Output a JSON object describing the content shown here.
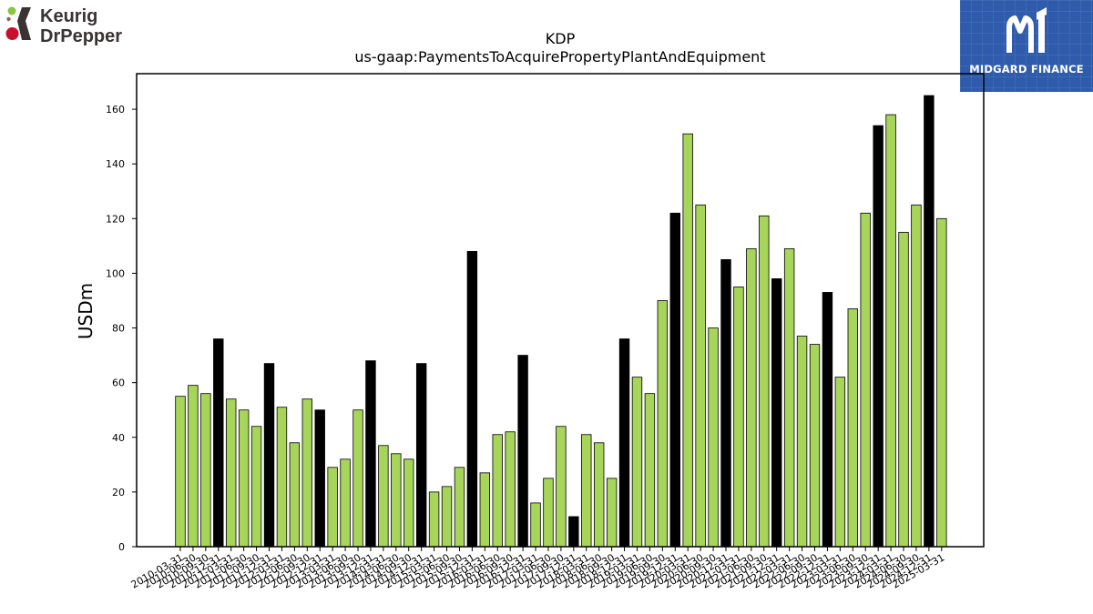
{
  "brand": {
    "logo_line1": "Keurig",
    "logo_line2": "DrPepper",
    "colors": {
      "dark": "#3a3333",
      "green": "#8cc540",
      "red": "#c8102e"
    }
  },
  "partner": {
    "wordmark": "MIDGARD FINANCE",
    "colors": {
      "background": "#2e5bab",
      "text": "#ffffff"
    }
  },
  "chart_data": {
    "type": "bar",
    "title": "KDP",
    "subtitle": "us-gaap:PaymentsToAcquirePropertyPlantAndEquipment",
    "xlabel": "",
    "ylabel": "USDm",
    "ylim": [
      0,
      173
    ],
    "yticks": [
      0,
      20,
      40,
      60,
      80,
      100,
      120,
      140,
      160
    ],
    "grid": false,
    "colors": {
      "quarter": "#a6d55a",
      "annual": "#000000",
      "edge": "#000000"
    },
    "categories": [
      "2010-03-31",
      "2010-06-30",
      "2010-09-30",
      "2010-12-31",
      "2011-03-31",
      "2011-06-30",
      "2011-09-30",
      "2011-12-31",
      "2012-03-31",
      "2012-06-30",
      "2012-09-30",
      "2012-12-31",
      "2013-03-31",
      "2013-06-30",
      "2013-09-30",
      "2013-12-31",
      "2014-03-31",
      "2014-06-30",
      "2014-09-30",
      "2014-12-31",
      "2015-03-31",
      "2015-06-30",
      "2015-09-30",
      "2015-12-31",
      "2016-03-31",
      "2016-06-30",
      "2016-09-30",
      "2016-12-31",
      "2017-03-31",
      "2017-06-30",
      "2017-09-30",
      "2017-12-31",
      "2018-03-31",
      "2018-06-30",
      "2018-09-30",
      "2018-12-31",
      "2019-03-31",
      "2019-06-30",
      "2019-09-30",
      "2019-12-31",
      "2020-03-31",
      "2020-06-30",
      "2020-09-30",
      "2020-12-31",
      "2021-03-31",
      "2021-06-30",
      "2021-09-30",
      "2021-12-31",
      "2022-03-31",
      "2022-06-30",
      "2022-09-30",
      "2022-12-31",
      "2023-03-31",
      "2023-06-30",
      "2023-09-30",
      "2023-12-31",
      "2024-03-31",
      "2024-06-30",
      "2024-09-30",
      "2024-12-31",
      "2025-03-31"
    ],
    "values": [
      55,
      59,
      56,
      76,
      54,
      50,
      44,
      67,
      51,
      38,
      54,
      50,
      29,
      32,
      50,
      68,
      37,
      34,
      32,
      67,
      20,
      22,
      29,
      108,
      27,
      41,
      42,
      70,
      16,
      25,
      44,
      11,
      41,
      38,
      25,
      76,
      62,
      56,
      90,
      122,
      151,
      125,
      80,
      105,
      95,
      109,
      121,
      98,
      109,
      77,
      74,
      93,
      62,
      87,
      122,
      154,
      158,
      115,
      125,
      165,
      120
    ]
  }
}
